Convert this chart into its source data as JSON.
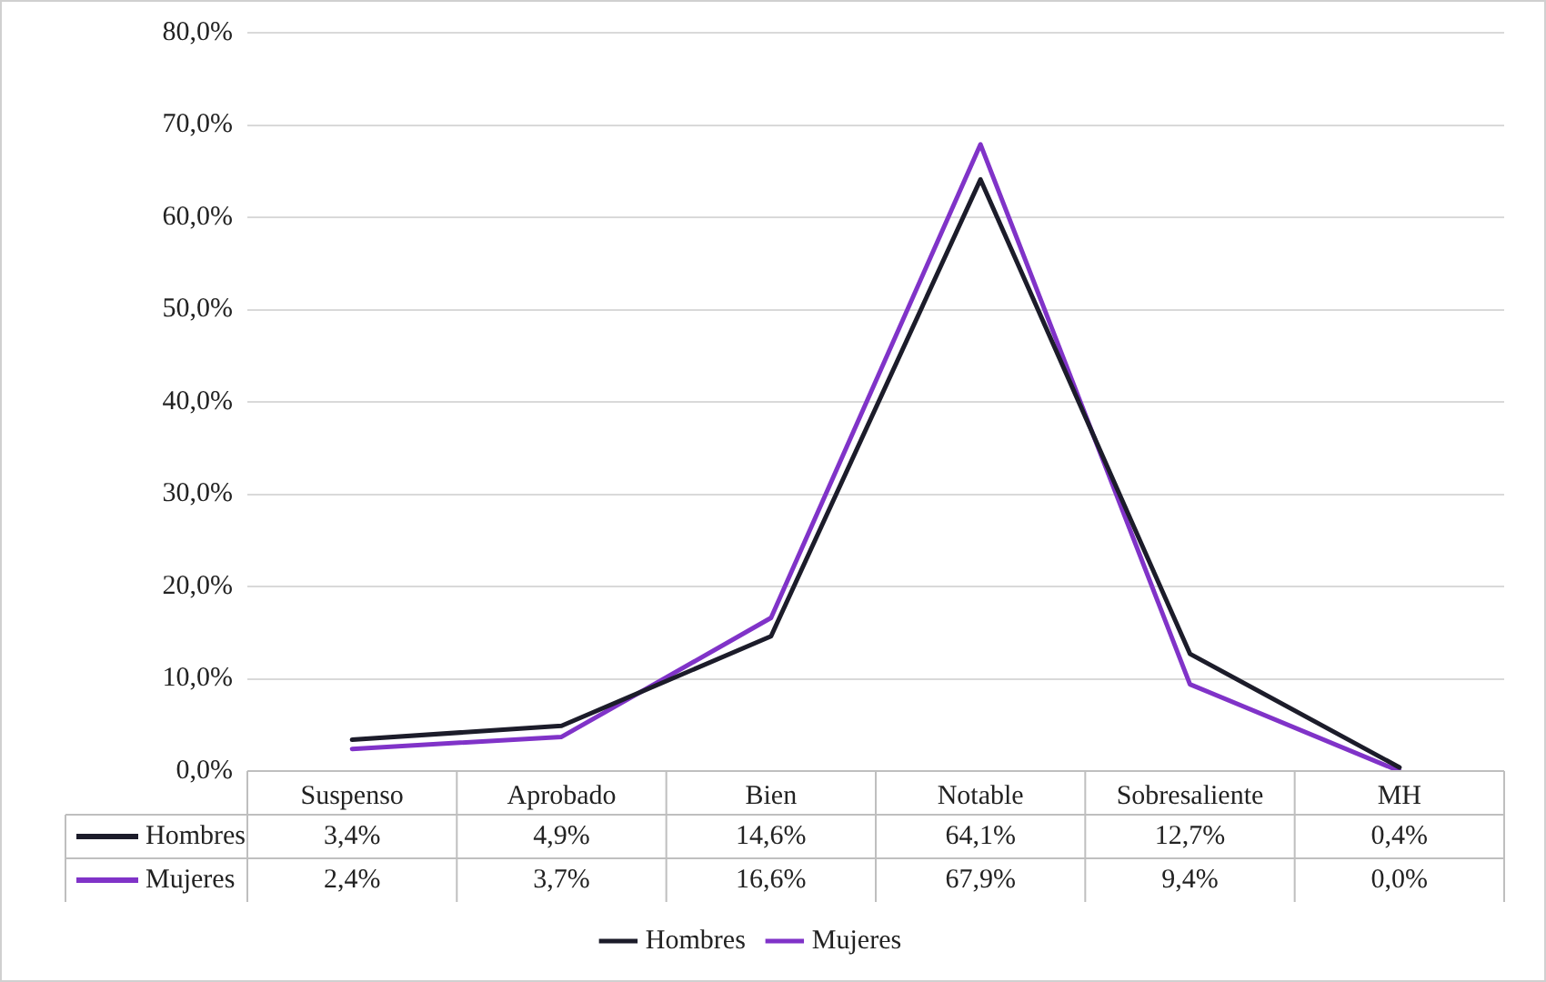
{
  "chart_data": {
    "type": "line",
    "categories": [
      "Suspenso",
      "Aprobado",
      "Bien",
      "Notable",
      "Sobresaliente",
      "MH"
    ],
    "series": [
      {
        "name": "Hombres",
        "color": "#1c1c2a",
        "values": [
          3.4,
          4.9,
          14.6,
          64.1,
          12.7,
          0.4
        ],
        "value_labels": [
          "3,4%",
          "4,9%",
          "14,6%",
          "64,1%",
          "12,7%",
          "0,4%"
        ]
      },
      {
        "name": "Mujeres",
        "color": "#8033c8",
        "values": [
          2.4,
          3.7,
          16.6,
          67.9,
          9.4,
          0.0
        ],
        "value_labels": [
          "2,4%",
          "3,7%",
          "16,6%",
          "67,9%",
          "9,4%",
          "0,0%"
        ]
      }
    ],
    "ylim": [
      0,
      80
    ],
    "yticks": [
      {
        "value": 0,
        "label": "0,0%"
      },
      {
        "value": 10,
        "label": "10,0%"
      },
      {
        "value": 20,
        "label": "20,0%"
      },
      {
        "value": 30,
        "label": "30,0%"
      },
      {
        "value": 40,
        "label": "40,0%"
      },
      {
        "value": 50,
        "label": "50,0%"
      },
      {
        "value": 60,
        "label": "60,0%"
      },
      {
        "value": 70,
        "label": "70,0%"
      },
      {
        "value": 80,
        "label": "80,0%"
      }
    ],
    "grid": "y",
    "legend": "bottom",
    "marker": "none",
    "line_style": "solid"
  }
}
